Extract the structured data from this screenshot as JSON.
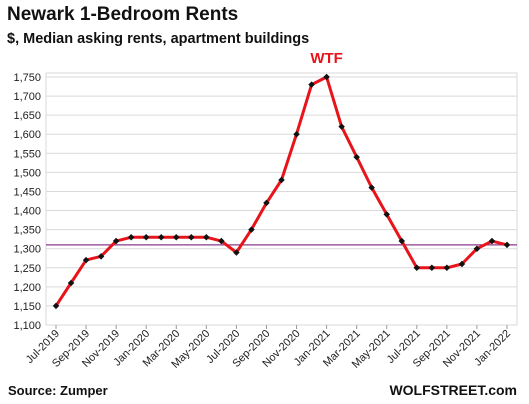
{
  "header": {
    "title": "Newark 1-Bedroom Rents",
    "subtitle": "$, Median asking rents, apartment buildings"
  },
  "footer": {
    "source": "Source: Zumper",
    "brand": "WOLFSTREET.com"
  },
  "colors": {
    "line": "#e8141b",
    "marker": "#111111",
    "reference": "#8b3a8b",
    "grid": "#d9d9d9",
    "annotation": "#e8141b"
  },
  "chart_data": {
    "type": "line",
    "title": "Newark 1-Bedroom Rents",
    "subtitle": "$, Median asking rents, apartment buildings",
    "xlabel": "",
    "ylabel": "",
    "ylim": [
      1100,
      1750
    ],
    "yticks": [
      1100,
      1150,
      1200,
      1250,
      1300,
      1350,
      1400,
      1450,
      1500,
      1550,
      1600,
      1650,
      1700,
      1750
    ],
    "ytick_labels": [
      "1,100",
      "1,150",
      "1,200",
      "1,250",
      "1,300",
      "1,350",
      "1,400",
      "1,450",
      "1,500",
      "1,550",
      "1,600",
      "1,650",
      "1,700",
      "1,750"
    ],
    "grid": true,
    "x": [
      "Jul-2019",
      "Aug-2019",
      "Sep-2019",
      "Oct-2019",
      "Nov-2019",
      "Dec-2019",
      "Jan-2020",
      "Feb-2020",
      "Mar-2020",
      "Apr-2020",
      "May-2020",
      "Jun-2020",
      "Jul-2020",
      "Aug-2020",
      "Sep-2020",
      "Oct-2020",
      "Nov-2020",
      "Dec-2020",
      "Jan-2021",
      "Feb-2021",
      "Mar-2021",
      "Apr-2021",
      "May-2021",
      "Jun-2021",
      "Jul-2021",
      "Aug-2021",
      "Sep-2021",
      "Oct-2021",
      "Nov-2021",
      "Dec-2021",
      "Jan-2022"
    ],
    "x_tick_labels": [
      "Jul-2019",
      "Sep-2019",
      "Nov-2019",
      "Jan-2020",
      "Mar-2020",
      "May-2020",
      "Jul-2020",
      "Sep-2020",
      "Nov-2020",
      "Jan-2021",
      "Mar-2021",
      "May-2021",
      "Jul-2021",
      "Sep-2021",
      "Nov-2021",
      "Jan-2022"
    ],
    "series": [
      {
        "values": [
          1150,
          1210,
          1270,
          1280,
          1320,
          1330,
          1330,
          1330,
          1330,
          1330,
          1330,
          1320,
          1290,
          1350,
          1420,
          1480,
          1600,
          1730,
          1750,
          1620,
          1540,
          1460,
          1390,
          1320,
          1250,
          1250,
          1250,
          1260,
          1300,
          1320,
          1310
        ]
      }
    ],
    "reference_line": {
      "value": 1310
    },
    "annotations": [
      {
        "text": "WTF",
        "x": "Jan-2021"
      }
    ]
  }
}
